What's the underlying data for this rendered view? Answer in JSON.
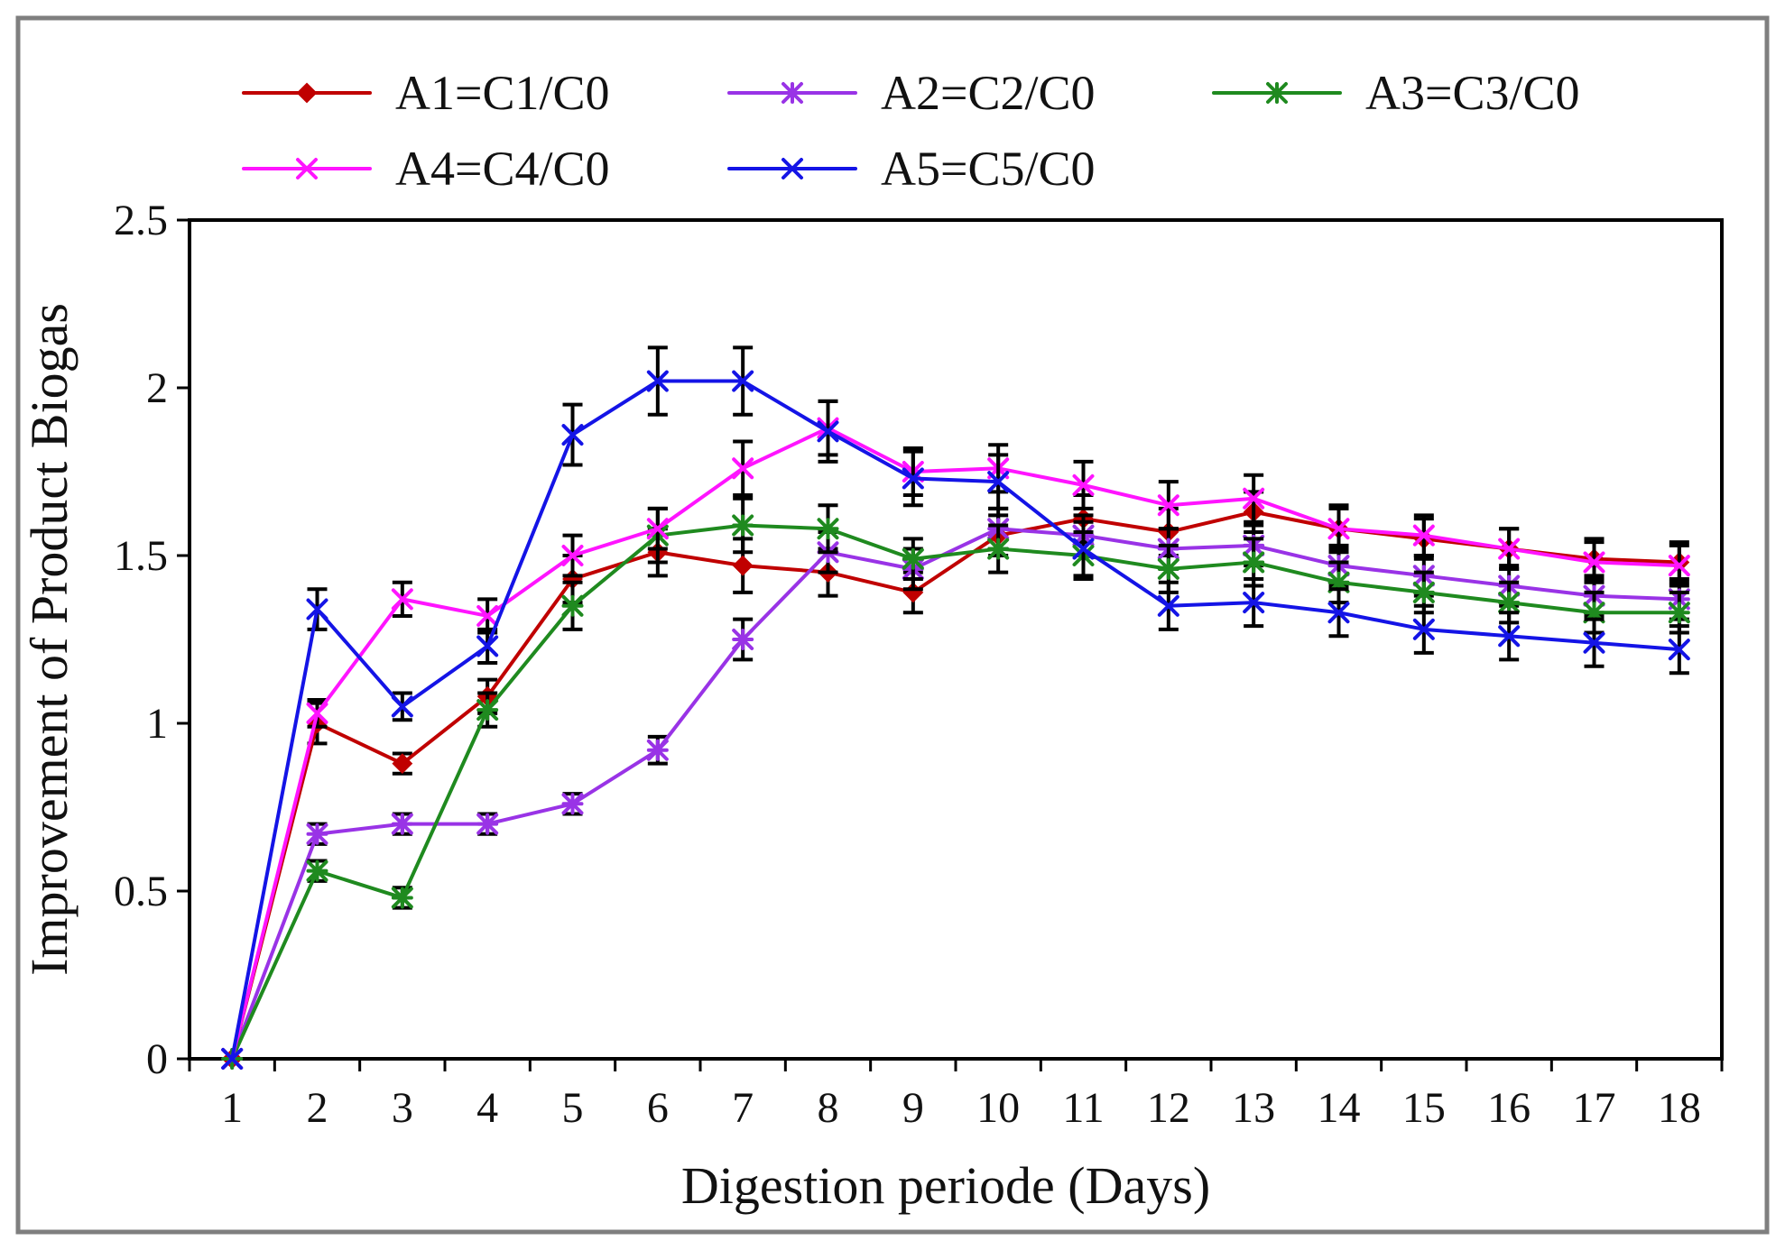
{
  "chart_data": {
    "type": "line",
    "title": "",
    "xlabel": "Digestion periode (Days)",
    "ylabel": "Improvement of Product Biogas",
    "x": [
      1,
      2,
      3,
      4,
      5,
      6,
      7,
      8,
      9,
      10,
      11,
      12,
      13,
      14,
      15,
      16,
      17,
      18
    ],
    "x_tick_labels": [
      "1",
      "2",
      "3",
      "4",
      "5",
      "6",
      "7",
      "8",
      "9",
      "10",
      "11",
      "12",
      "13",
      "14",
      "15",
      "16",
      "17",
      "18"
    ],
    "y_tick_labels": [
      "0",
      "0.5",
      "1",
      "1.5",
      "2",
      "2.5"
    ],
    "y_ticks": [
      0,
      0.5,
      1,
      1.5,
      2,
      2.5
    ],
    "ylim": [
      0,
      2.5
    ],
    "grid": false,
    "legend_position": "top",
    "series": [
      {
        "name": "A1=C1/C0",
        "color": "#C00000",
        "marker": "diamond",
        "values": [
          0,
          1.0,
          0.88,
          1.08,
          1.43,
          1.51,
          1.47,
          1.45,
          1.39,
          1.56,
          1.61,
          1.57,
          1.63,
          1.58,
          1.55,
          1.52,
          1.49,
          1.48
        ],
        "errors": [
          0,
          0.06,
          0.03,
          0.05,
          0.07,
          0.07,
          0.08,
          0.07,
          0.06,
          0.06,
          0.07,
          0.07,
          0.06,
          0.06,
          0.06,
          0.06,
          0.06,
          0.06
        ]
      },
      {
        "name": "A2=C2/C0",
        "color": "#9933E6",
        "marker": "asterisk",
        "values": [
          0,
          0.67,
          0.7,
          0.7,
          0.76,
          0.92,
          1.25,
          1.51,
          1.46,
          1.58,
          1.56,
          1.52,
          1.53,
          1.47,
          1.44,
          1.41,
          1.38,
          1.37
        ],
        "errors": [
          0,
          0.03,
          0.03,
          0.03,
          0.03,
          0.04,
          0.06,
          0.06,
          0.06,
          0.06,
          0.06,
          0.06,
          0.06,
          0.06,
          0.06,
          0.06,
          0.06,
          0.06
        ]
      },
      {
        "name": "A3=C3/C0",
        "color": "#1F8A1F",
        "marker": "asterisk",
        "values": [
          0,
          0.56,
          0.48,
          1.04,
          1.35,
          1.56,
          1.59,
          1.58,
          1.49,
          1.52,
          1.5,
          1.46,
          1.48,
          1.42,
          1.39,
          1.36,
          1.33,
          1.33
        ],
        "errors": [
          0,
          0.03,
          0.03,
          0.05,
          0.07,
          0.08,
          0.08,
          0.07,
          0.06,
          0.07,
          0.07,
          0.07,
          0.07,
          0.06,
          0.06,
          0.06,
          0.06,
          0.06
        ]
      },
      {
        "name": "A4=C4/C0",
        "color": "#FF14FF",
        "marker": "cross",
        "values": [
          0,
          1.03,
          1.37,
          1.32,
          1.5,
          1.58,
          1.76,
          1.88,
          1.75,
          1.76,
          1.71,
          1.65,
          1.67,
          1.58,
          1.56,
          1.52,
          1.48,
          1.47
        ],
        "errors": [
          0,
          0.04,
          0.05,
          0.05,
          0.06,
          0.06,
          0.08,
          0.08,
          0.07,
          0.07,
          0.07,
          0.07,
          0.07,
          0.07,
          0.06,
          0.06,
          0.06,
          0.06
        ]
      },
      {
        "name": "A5=C5/C0",
        "color": "#1414E6",
        "marker": "cross",
        "values": [
          0,
          1.34,
          1.05,
          1.23,
          1.86,
          2.02,
          2.02,
          1.87,
          1.73,
          1.72,
          1.52,
          1.35,
          1.36,
          1.33,
          1.28,
          1.26,
          1.24,
          1.22
        ],
        "errors": [
          0,
          0.06,
          0.04,
          0.05,
          0.09,
          0.1,
          0.1,
          0.09,
          0.08,
          0.08,
          0.08,
          0.07,
          0.07,
          0.07,
          0.07,
          0.07,
          0.07,
          0.07
        ]
      }
    ]
  }
}
